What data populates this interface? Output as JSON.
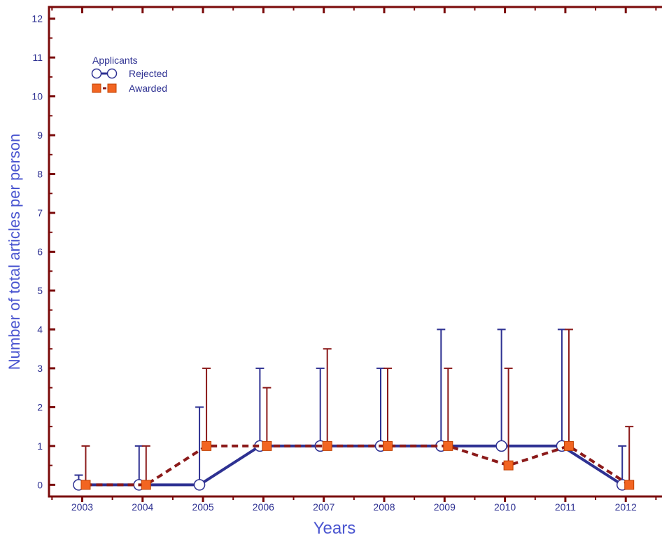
{
  "chart_data": {
    "type": "line",
    "title": "",
    "xlabel": "Years",
    "ylabel": "Number of total articles per person",
    "x": [
      2003,
      2004,
      2005,
      2006,
      2007,
      2008,
      2009,
      2010,
      2011,
      2012
    ],
    "xlim": [
      2002.45,
      2012.6
    ],
    "ylim": [
      -0.3,
      12.3
    ],
    "yticks": [
      0,
      1,
      2,
      3,
      4,
      5,
      6,
      7,
      8,
      9,
      10,
      11,
      12
    ],
    "grid": false,
    "legend": {
      "title": "Applicants",
      "position": "top-left"
    },
    "series": [
      {
        "name": "Rejected",
        "values": [
          0,
          0,
          0,
          1,
          1,
          1,
          1,
          1,
          1,
          0
        ],
        "error_low": [
          0,
          0,
          0,
          0,
          0,
          0,
          0,
          0,
          0,
          0
        ],
        "error_high": [
          0.25,
          1,
          2,
          2,
          2,
          2,
          3,
          3,
          3,
          1
        ],
        "color": "#2e3192",
        "line_style": "solid",
        "marker": "open-circle"
      },
      {
        "name": "Awarded",
        "values": [
          0,
          0,
          1,
          1,
          1,
          1,
          1,
          0.5,
          1,
          0
        ],
        "error_low": [
          0,
          0,
          0,
          0,
          0,
          0,
          0,
          0,
          0,
          0
        ],
        "error_high": [
          1,
          1,
          2,
          1.5,
          2.5,
          2,
          2,
          2.5,
          3,
          1.5
        ],
        "color": "#8b1a1a",
        "line_style": "dashed",
        "marker": "filled-square",
        "marker_color": "#f26522"
      }
    ]
  },
  "colors": {
    "axis": "#7a0a0a",
    "tick_label": "#2e3192",
    "axis_title": "#4a55d0"
  }
}
